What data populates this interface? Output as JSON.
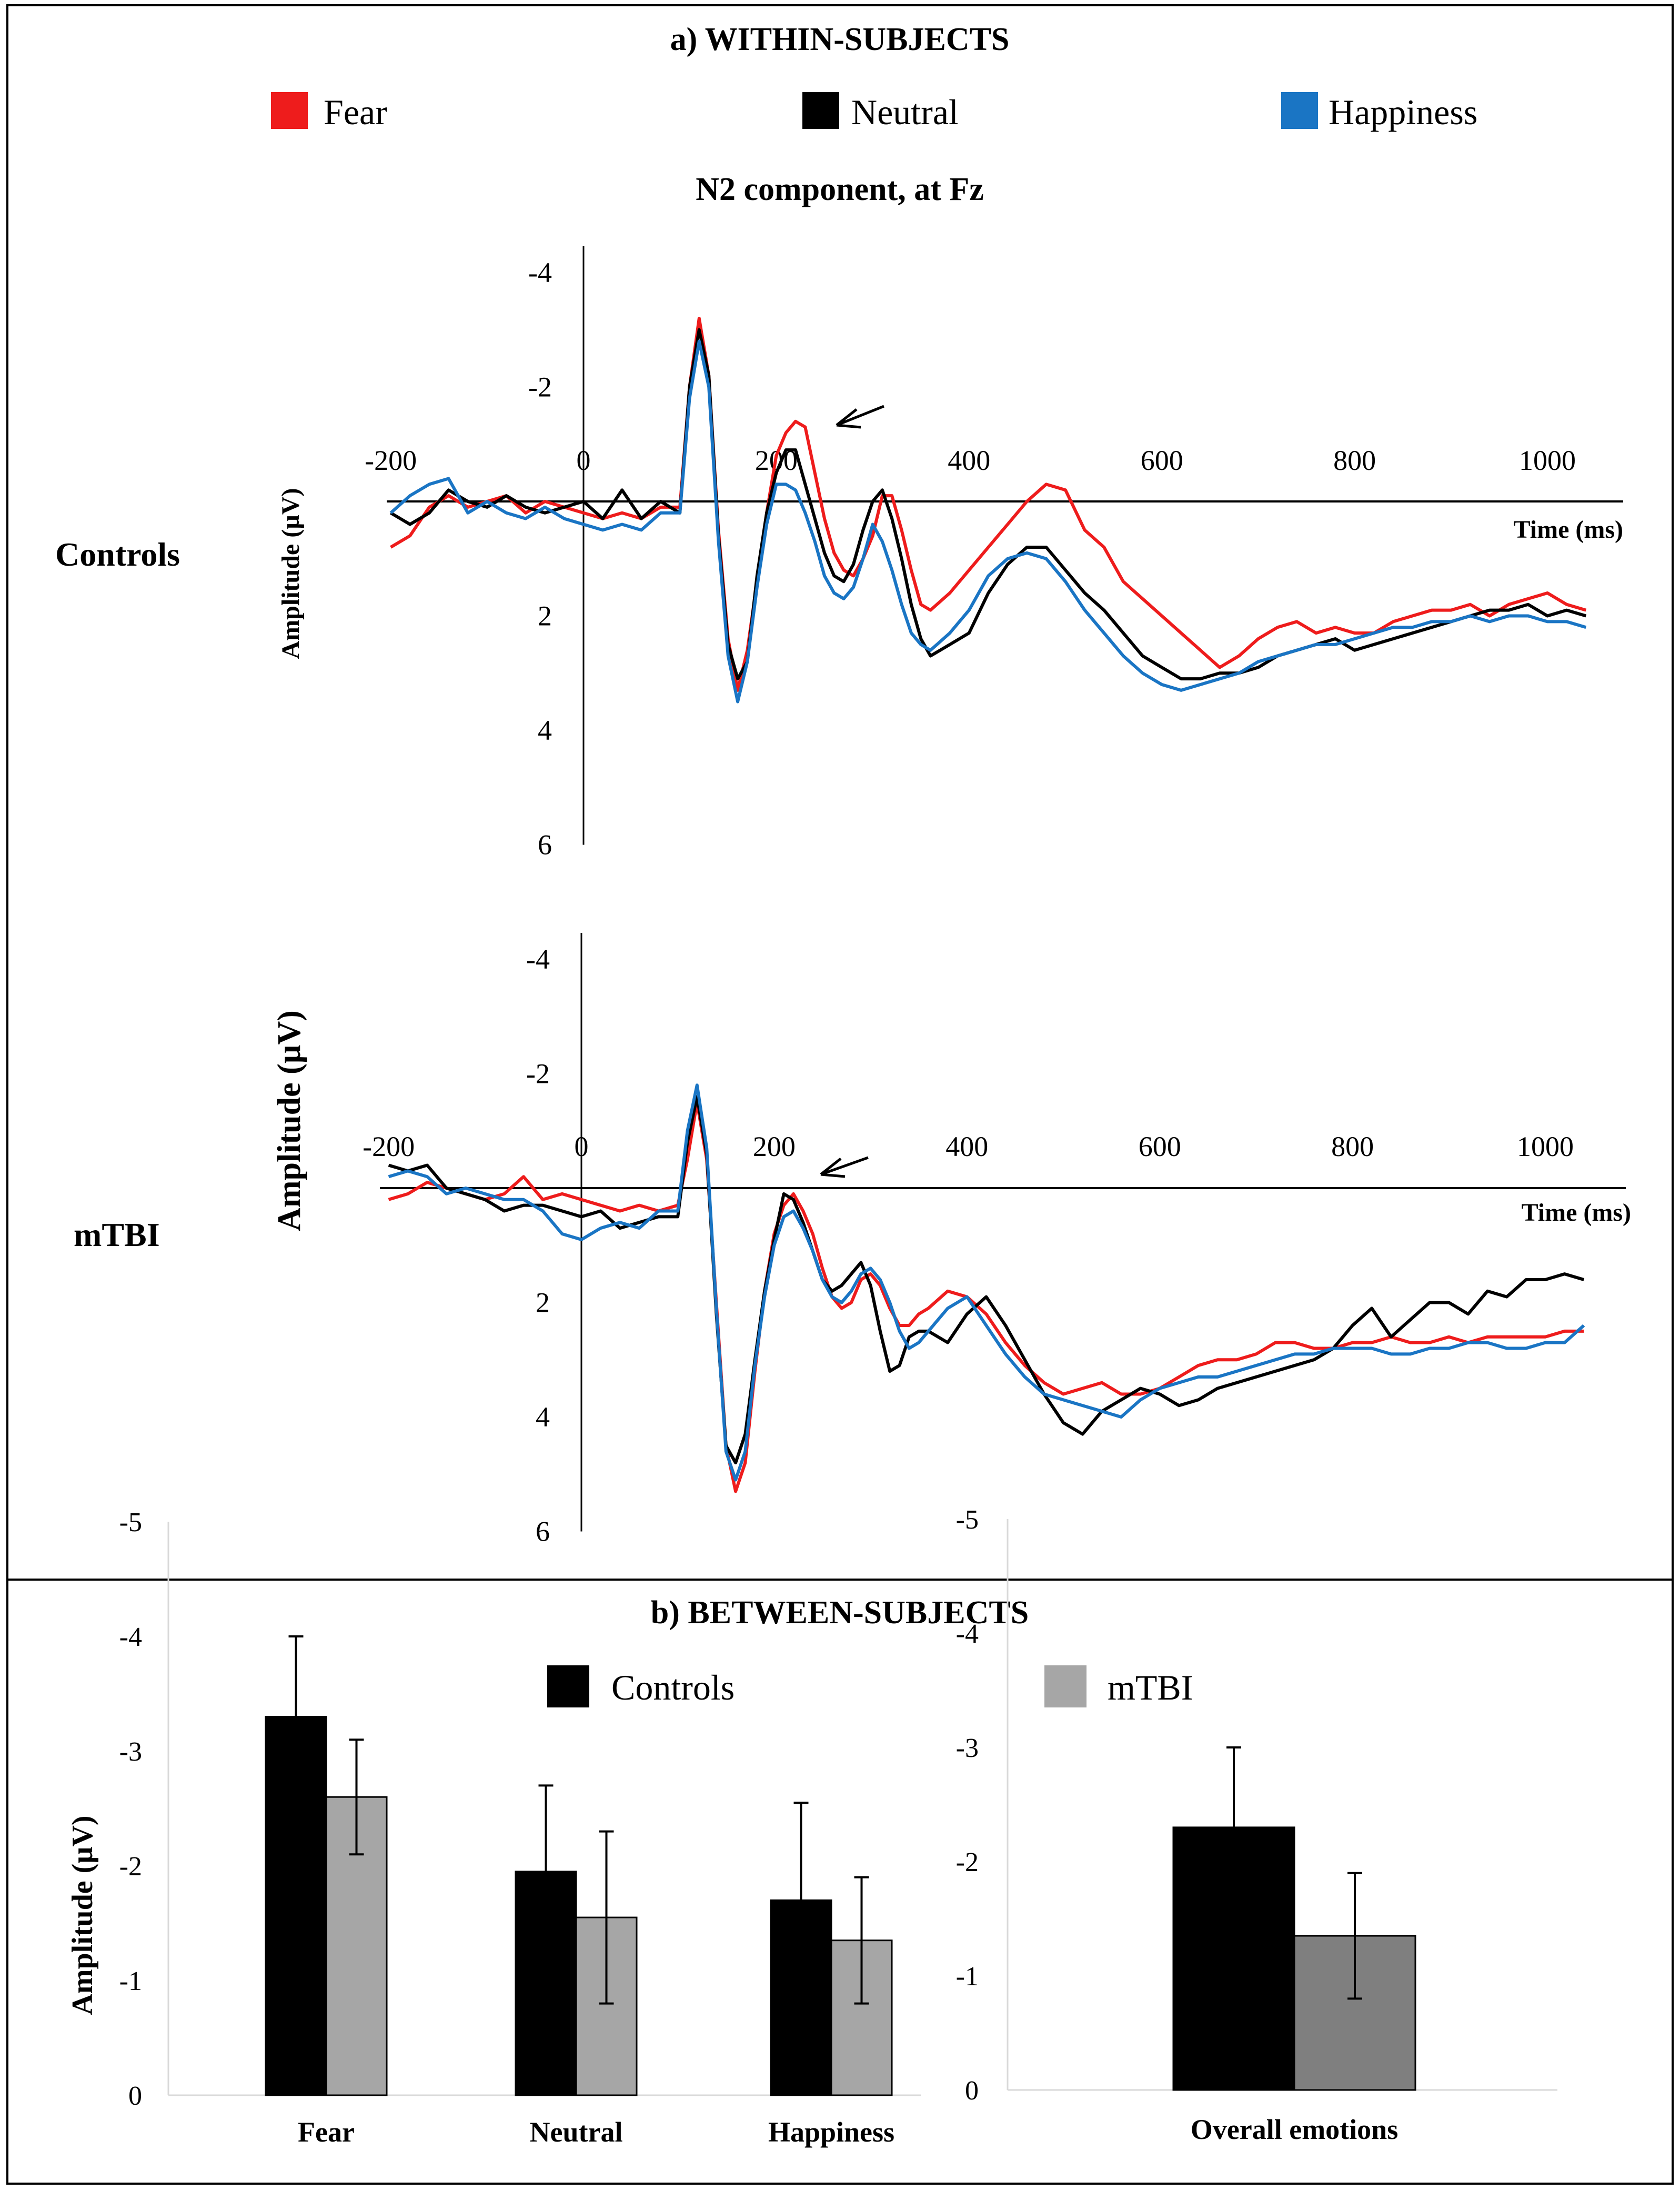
{
  "panel_a": {
    "title": "a) WITHIN-SUBJECTS",
    "subtitle": "N2 component, at Fz",
    "legend": [
      {
        "label": "Fear",
        "color": "#ee1c1c"
      },
      {
        "label": "Neutral",
        "color": "#000000"
      },
      {
        "label": "Happiness",
        "color": "#1a75c4"
      }
    ]
  },
  "panel_b": {
    "title": "b) BETWEEN-SUBJECTS",
    "legend": [
      {
        "label": "Controls",
        "color": "#000000"
      },
      {
        "label": "mTBI",
        "color": "#a6a6a6"
      }
    ]
  },
  "chart_data": [
    {
      "type": "line",
      "group_label": "Controls",
      "xlabel": "Time (ms)",
      "ylabel": "Amplitude (µV)",
      "xlim": [
        -200,
        1050
      ],
      "ylim": [
        -4,
        6
      ],
      "y_inverted": true,
      "x_ticks": [
        "-200",
        "0",
        "200",
        "400",
        "600",
        "800",
        "1000"
      ],
      "x_tick_values": [
        -200,
        0,
        200,
        400,
        600,
        800,
        1000
      ],
      "y_ticks": [
        "-4",
        "-2",
        "0",
        "2",
        "4",
        "6"
      ],
      "y_tick_values": [
        -4,
        -2,
        0,
        2,
        4,
        6
      ],
      "annotation": "arrow at N2 peak (~240 ms)",
      "x": [
        -200,
        -180,
        -160,
        -140,
        -120,
        -100,
        -80,
        -60,
        -40,
        -20,
        0,
        20,
        40,
        60,
        80,
        100,
        110,
        120,
        130,
        140,
        150,
        160,
        170,
        180,
        190,
        200,
        210,
        220,
        230,
        240,
        250,
        260,
        270,
        280,
        290,
        300,
        310,
        320,
        330,
        340,
        350,
        360,
        380,
        400,
        420,
        440,
        460,
        480,
        500,
        520,
        540,
        560,
        580,
        600,
        620,
        640,
        660,
        680,
        700,
        720,
        740,
        760,
        780,
        800,
        820,
        840,
        860,
        880,
        900,
        920,
        940,
        960,
        980,
        1000,
        1020,
        1040
      ],
      "series": [
        {
          "name": "Fear",
          "color": "#ee1c1c",
          "values": [
            0.8,
            0.6,
            0.1,
            -0.1,
            0.1,
            0.0,
            -0.1,
            0.2,
            0.0,
            0.1,
            0.2,
            0.3,
            0.2,
            0.3,
            0.1,
            0.1,
            -2.0,
            -3.2,
            -2.2,
            0.5,
            2.4,
            3.3,
            2.6,
            1.4,
            0.2,
            -0.8,
            -1.2,
            -1.4,
            -1.3,
            -0.5,
            0.3,
            0.9,
            1.2,
            1.3,
            1.0,
            0.6,
            -0.1,
            -0.1,
            0.5,
            1.2,
            1.8,
            1.9,
            1.6,
            1.2,
            0.8,
            0.4,
            0.0,
            -0.3,
            -0.2,
            0.5,
            0.8,
            1.4,
            1.7,
            2.0,
            2.3,
            2.6,
            2.9,
            2.7,
            2.4,
            2.2,
            2.1,
            2.3,
            2.2,
            2.3,
            2.3,
            2.1,
            2.0,
            1.9,
            1.9,
            1.8,
            2.0,
            1.8,
            1.7,
            1.6,
            1.8,
            1.9
          ]
        },
        {
          "name": "Neutral",
          "color": "#000000",
          "values": [
            0.2,
            0.4,
            0.2,
            -0.2,
            0.0,
            0.1,
            -0.1,
            0.1,
            0.2,
            0.1,
            0.0,
            0.3,
            -0.2,
            0.3,
            0.0,
            0.2,
            -2.0,
            -3.0,
            -2.2,
            0.6,
            2.5,
            3.1,
            2.8,
            1.3,
            0.2,
            -0.5,
            -0.9,
            -0.9,
            -0.3,
            0.3,
            0.9,
            1.3,
            1.4,
            1.1,
            0.5,
            0.0,
            -0.2,
            0.3,
            1.0,
            1.8,
            2.4,
            2.7,
            2.5,
            2.3,
            1.6,
            1.1,
            0.8,
            0.8,
            1.2,
            1.6,
            1.9,
            2.3,
            2.7,
            2.9,
            3.1,
            3.1,
            3.0,
            3.0,
            2.9,
            2.7,
            2.6,
            2.5,
            2.4,
            2.6,
            2.5,
            2.4,
            2.3,
            2.2,
            2.1,
            2.0,
            1.9,
            1.9,
            1.8,
            2.0,
            1.9,
            2.0
          ]
        },
        {
          "name": "Happiness",
          "color": "#1a75c4",
          "values": [
            0.2,
            -0.1,
            -0.3,
            -0.4,
            0.2,
            0.0,
            0.2,
            0.3,
            0.1,
            0.3,
            0.4,
            0.5,
            0.4,
            0.5,
            0.2,
            0.2,
            -1.8,
            -2.8,
            -2.0,
            0.7,
            2.7,
            3.5,
            2.8,
            1.5,
            0.4,
            -0.3,
            -0.3,
            -0.2,
            0.2,
            0.7,
            1.3,
            1.6,
            1.7,
            1.5,
            1.0,
            0.4,
            0.7,
            1.2,
            1.8,
            2.3,
            2.5,
            2.6,
            2.3,
            1.9,
            1.3,
            1.0,
            0.9,
            1.0,
            1.4,
            1.9,
            2.3,
            2.7,
            3.0,
            3.2,
            3.3,
            3.2,
            3.1,
            3.0,
            2.8,
            2.7,
            2.6,
            2.5,
            2.5,
            2.4,
            2.3,
            2.2,
            2.2,
            2.1,
            2.1,
            2.0,
            2.1,
            2.0,
            2.0,
            2.1,
            2.1,
            2.2
          ]
        }
      ]
    },
    {
      "type": "line",
      "group_label": "mTBI",
      "xlabel": "Time (ms)",
      "ylabel": "Amplitude (µV)",
      "xlim": [
        -200,
        1050
      ],
      "ylim": [
        -4,
        6
      ],
      "y_inverted": true,
      "x_ticks": [
        "-200",
        "0",
        "200",
        "400",
        "600",
        "800",
        "1000"
      ],
      "x_tick_values": [
        -200,
        0,
        200,
        400,
        600,
        800,
        1000
      ],
      "y_ticks": [
        "-4",
        "-2",
        "0",
        "2",
        "4",
        "6"
      ],
      "y_tick_values": [
        -4,
        -2,
        0,
        2,
        4,
        6
      ],
      "annotation": "arrow at N2 peak (~240 ms)",
      "x": [
        -200,
        -180,
        -160,
        -140,
        -120,
        -100,
        -80,
        -60,
        -40,
        -20,
        0,
        20,
        40,
        60,
        80,
        100,
        110,
        120,
        130,
        140,
        150,
        160,
        170,
        180,
        190,
        200,
        210,
        220,
        230,
        240,
        250,
        260,
        270,
        280,
        290,
        300,
        310,
        320,
        330,
        340,
        350,
        360,
        380,
        400,
        420,
        440,
        460,
        480,
        500,
        520,
        540,
        560,
        580,
        600,
        620,
        640,
        660,
        680,
        700,
        720,
        740,
        760,
        780,
        800,
        820,
        840,
        860,
        880,
        900,
        920,
        940,
        960,
        980,
        1000,
        1020,
        1040
      ],
      "series": [
        {
          "name": "Fear",
          "color": "#ee1c1c",
          "values": [
            0.2,
            0.1,
            -0.1,
            0.0,
            0.1,
            0.2,
            0.1,
            -0.2,
            0.2,
            0.1,
            0.2,
            0.3,
            0.4,
            0.3,
            0.4,
            0.3,
            -0.5,
            -1.5,
            -0.5,
            2.0,
            4.5,
            5.3,
            4.8,
            3.2,
            1.8,
            0.8,
            0.3,
            0.1,
            0.4,
            0.8,
            1.4,
            1.9,
            2.1,
            2.0,
            1.6,
            1.5,
            1.7,
            2.1,
            2.4,
            2.4,
            2.2,
            2.1,
            1.8,
            1.9,
            2.2,
            2.7,
            3.1,
            3.4,
            3.6,
            3.5,
            3.4,
            3.6,
            3.6,
            3.5,
            3.3,
            3.1,
            3.0,
            3.0,
            2.9,
            2.7,
            2.7,
            2.8,
            2.8,
            2.7,
            2.7,
            2.6,
            2.7,
            2.7,
            2.6,
            2.7,
            2.6,
            2.6,
            2.6,
            2.6,
            2.5,
            2.5
          ]
        },
        {
          "name": "Neutral",
          "color": "#000000",
          "values": [
            -0.4,
            -0.3,
            -0.4,
            0.0,
            0.1,
            0.2,
            0.4,
            0.3,
            0.3,
            0.4,
            0.5,
            0.4,
            0.7,
            0.6,
            0.5,
            0.5,
            -0.8,
            -1.6,
            -0.6,
            2.2,
            4.5,
            4.8,
            4.3,
            3.0,
            1.8,
            0.9,
            0.1,
            0.2,
            0.6,
            1.1,
            1.6,
            1.8,
            1.7,
            1.5,
            1.3,
            1.7,
            2.5,
            3.2,
            3.1,
            2.6,
            2.5,
            2.5,
            2.7,
            2.2,
            1.9,
            2.4,
            3.0,
            3.6,
            4.1,
            4.3,
            3.9,
            3.7,
            3.5,
            3.6,
            3.8,
            3.7,
            3.5,
            3.4,
            3.3,
            3.2,
            3.1,
            3.0,
            2.8,
            2.4,
            2.1,
            2.6,
            2.3,
            2.0,
            2.0,
            2.2,
            1.8,
            1.9,
            1.6,
            1.6,
            1.5,
            1.6
          ]
        },
        {
          "name": "Happiness",
          "color": "#1a75c4",
          "values": [
            -0.2,
            -0.3,
            -0.2,
            0.1,
            0.0,
            0.1,
            0.2,
            0.2,
            0.4,
            0.8,
            0.9,
            0.7,
            0.6,
            0.7,
            0.4,
            0.4,
            -1.0,
            -1.8,
            -0.7,
            2.1,
            4.6,
            5.1,
            4.6,
            3.1,
            1.9,
            1.0,
            0.5,
            0.4,
            0.7,
            1.1,
            1.6,
            1.9,
            2.0,
            1.8,
            1.5,
            1.4,
            1.6,
            2.0,
            2.5,
            2.8,
            2.7,
            2.5,
            2.1,
            1.9,
            2.4,
            2.9,
            3.3,
            3.6,
            3.7,
            3.8,
            3.9,
            4.0,
            3.7,
            3.5,
            3.4,
            3.3,
            3.3,
            3.2,
            3.1,
            3.0,
            2.9,
            2.9,
            2.8,
            2.8,
            2.8,
            2.9,
            2.9,
            2.8,
            2.8,
            2.7,
            2.7,
            2.8,
            2.8,
            2.7,
            2.7,
            2.4
          ]
        }
      ]
    },
    {
      "type": "bar",
      "ylabel": "Amplitude (µV)",
      "ylim": [
        0,
        -5
      ],
      "y_ticks": [
        "0",
        "-1",
        "-2",
        "-3",
        "-4",
        "-5"
      ],
      "y_tick_values": [
        0,
        -1,
        -2,
        -3,
        -4,
        -5
      ],
      "categories": [
        "Fear",
        "Neutral",
        "Happiness"
      ],
      "series": [
        {
          "name": "Controls",
          "color": "#000000",
          "values": [
            -3.3,
            -1.95,
            -1.7
          ],
          "errors": [
            0.7,
            0.75,
            0.85
          ]
        },
        {
          "name": "mTBI",
          "color": "#a6a6a6",
          "values": [
            -2.6,
            -1.55,
            -1.35
          ],
          "errors": [
            0.5,
            0.75,
            0.55
          ]
        }
      ]
    },
    {
      "type": "bar",
      "ylabel": "",
      "ylim": [
        0,
        -5
      ],
      "y_ticks": [
        "0",
        "-1",
        "-2",
        "-3",
        "-4",
        "-5"
      ],
      "y_tick_values": [
        0,
        -1,
        -2,
        -3,
        -4,
        -5
      ],
      "categories": [
        "Overall emotions"
      ],
      "series": [
        {
          "name": "Controls",
          "color": "#000000",
          "values": [
            -2.3
          ],
          "errors": [
            0.7
          ]
        },
        {
          "name": "mTBI",
          "color": "#7f7f7f",
          "values": [
            -1.35
          ],
          "errors": [
            0.55
          ]
        }
      ]
    }
  ]
}
